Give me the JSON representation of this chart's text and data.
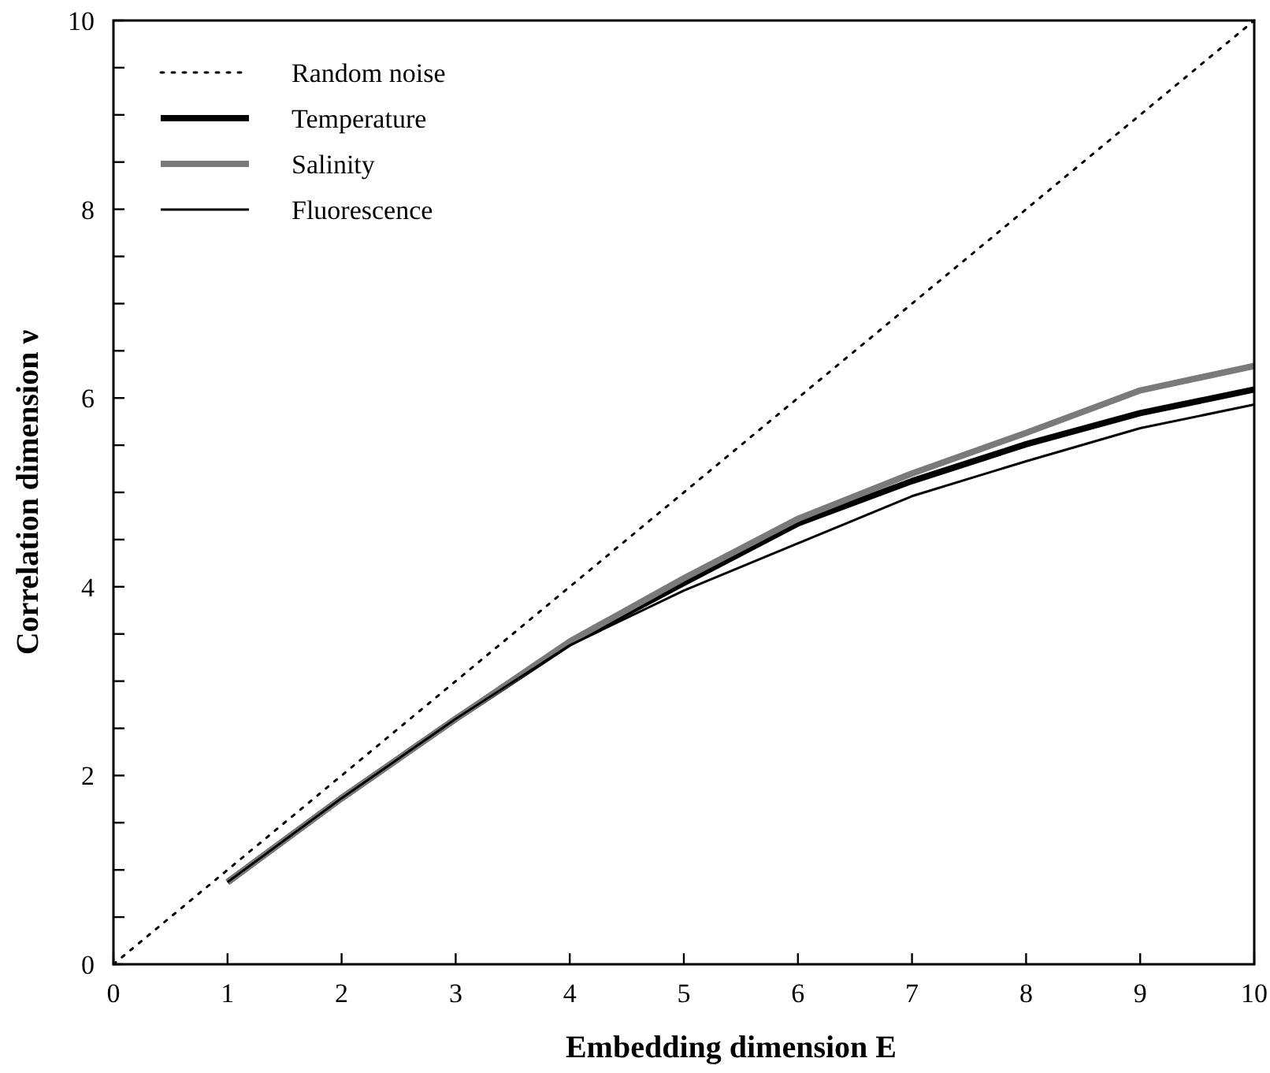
{
  "chart_data": {
    "type": "line",
    "xlabel": "Embedding dimension E",
    "ylabel": "Correlation dimension ν",
    "xlim": [
      0,
      10
    ],
    "ylim": [
      0,
      10
    ],
    "xticks": [
      0,
      1,
      2,
      3,
      4,
      5,
      6,
      7,
      8,
      9,
      10
    ],
    "yticks": [
      0,
      {
        "value": 0.5,
        "label": null
      },
      {
        "value": 1,
        "label": null
      },
      {
        "value": 1.5,
        "label": null
      },
      2,
      {
        "value": 2.5,
        "label": null
      },
      {
        "value": 3,
        "label": null
      },
      {
        "value": 3.5,
        "label": null
      },
      4,
      {
        "value": 4.5,
        "label": null
      },
      {
        "value": 5,
        "label": null
      },
      {
        "value": 5.5,
        "label": null
      },
      6,
      {
        "value": 6.5,
        "label": null
      },
      {
        "value": 7,
        "label": null
      },
      {
        "value": 7.5,
        "label": null
      },
      8,
      {
        "value": 8.5,
        "label": null
      },
      {
        "value": 9,
        "label": null
      },
      {
        "value": 9.5,
        "label": null
      },
      10
    ],
    "legend": "top left",
    "grid": false,
    "series": [
      {
        "name": "Random noise",
        "color": "#000000",
        "line_style": "dotted",
        "x": [
          0,
          10
        ],
        "values": [
          0,
          10
        ]
      },
      {
        "name": "Temperature",
        "color": "#000000",
        "line_style": "solid",
        "x": [
          1,
          2,
          3,
          4,
          5,
          6,
          7,
          8,
          9,
          10
        ],
        "values": [
          0.87,
          1.76,
          2.6,
          3.4,
          4.04,
          4.67,
          5.12,
          5.51,
          5.84,
          6.09
        ]
      },
      {
        "name": "Salinity",
        "color": "#7a7a7a",
        "line_style": "solid",
        "x": [
          1,
          2,
          3,
          4,
          5,
          6,
          7,
          8,
          9,
          10
        ],
        "values": [
          0.87,
          1.76,
          2.6,
          3.42,
          4.09,
          4.72,
          5.2,
          5.63,
          6.08,
          6.34
        ]
      },
      {
        "name": "Fluorescence",
        "color": "#000000",
        "line_style": "solid",
        "x": [
          1,
          2,
          3,
          4,
          5,
          6,
          7,
          8,
          9,
          10
        ],
        "values": [
          0.87,
          1.76,
          2.6,
          3.38,
          3.96,
          4.46,
          4.96,
          5.33,
          5.68,
          5.93
        ]
      }
    ]
  }
}
